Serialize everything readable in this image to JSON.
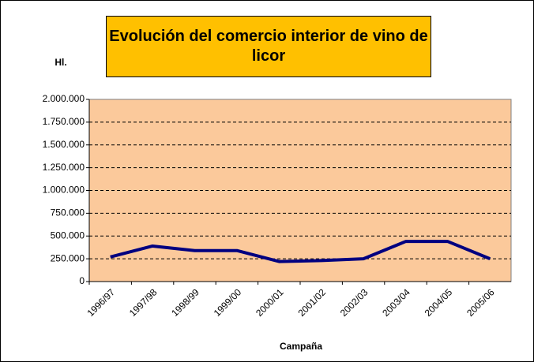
{
  "chart_data": {
    "type": "line",
    "title": "Evolución del comercio interior de vino de licor",
    "y_label": "Hl.",
    "x_label": "Campaña",
    "categories": [
      "1996/97",
      "1997/98",
      "1998/99",
      "1999/00",
      "2000/01",
      "2001/02",
      "2002/03",
      "2003/04",
      "2004/05",
      "2005/06"
    ],
    "values": [
      270000,
      390000,
      340000,
      340000,
      220000,
      230000,
      250000,
      440000,
      440000,
      250000
    ],
    "color": "#000080",
    "ylim": [
      0,
      2000000
    ],
    "yticks": [
      0,
      {
        "value": 250000,
        "label": "250.000"
      },
      {
        "value": 500000,
        "label": "500.000"
      },
      {
        "value": 750000,
        "label": "750.000"
      },
      {
        "value": 1000000,
        "label": "1.000.000"
      },
      {
        "value": 1250000,
        "label": "1.250.000"
      },
      {
        "value": 1500000,
        "label": "1.500.000"
      },
      {
        "value": 1750000,
        "label": "1.750.000"
      },
      {
        "value": 2000000,
        "label": "2.000.000"
      }
    ],
    "grid": true
  }
}
